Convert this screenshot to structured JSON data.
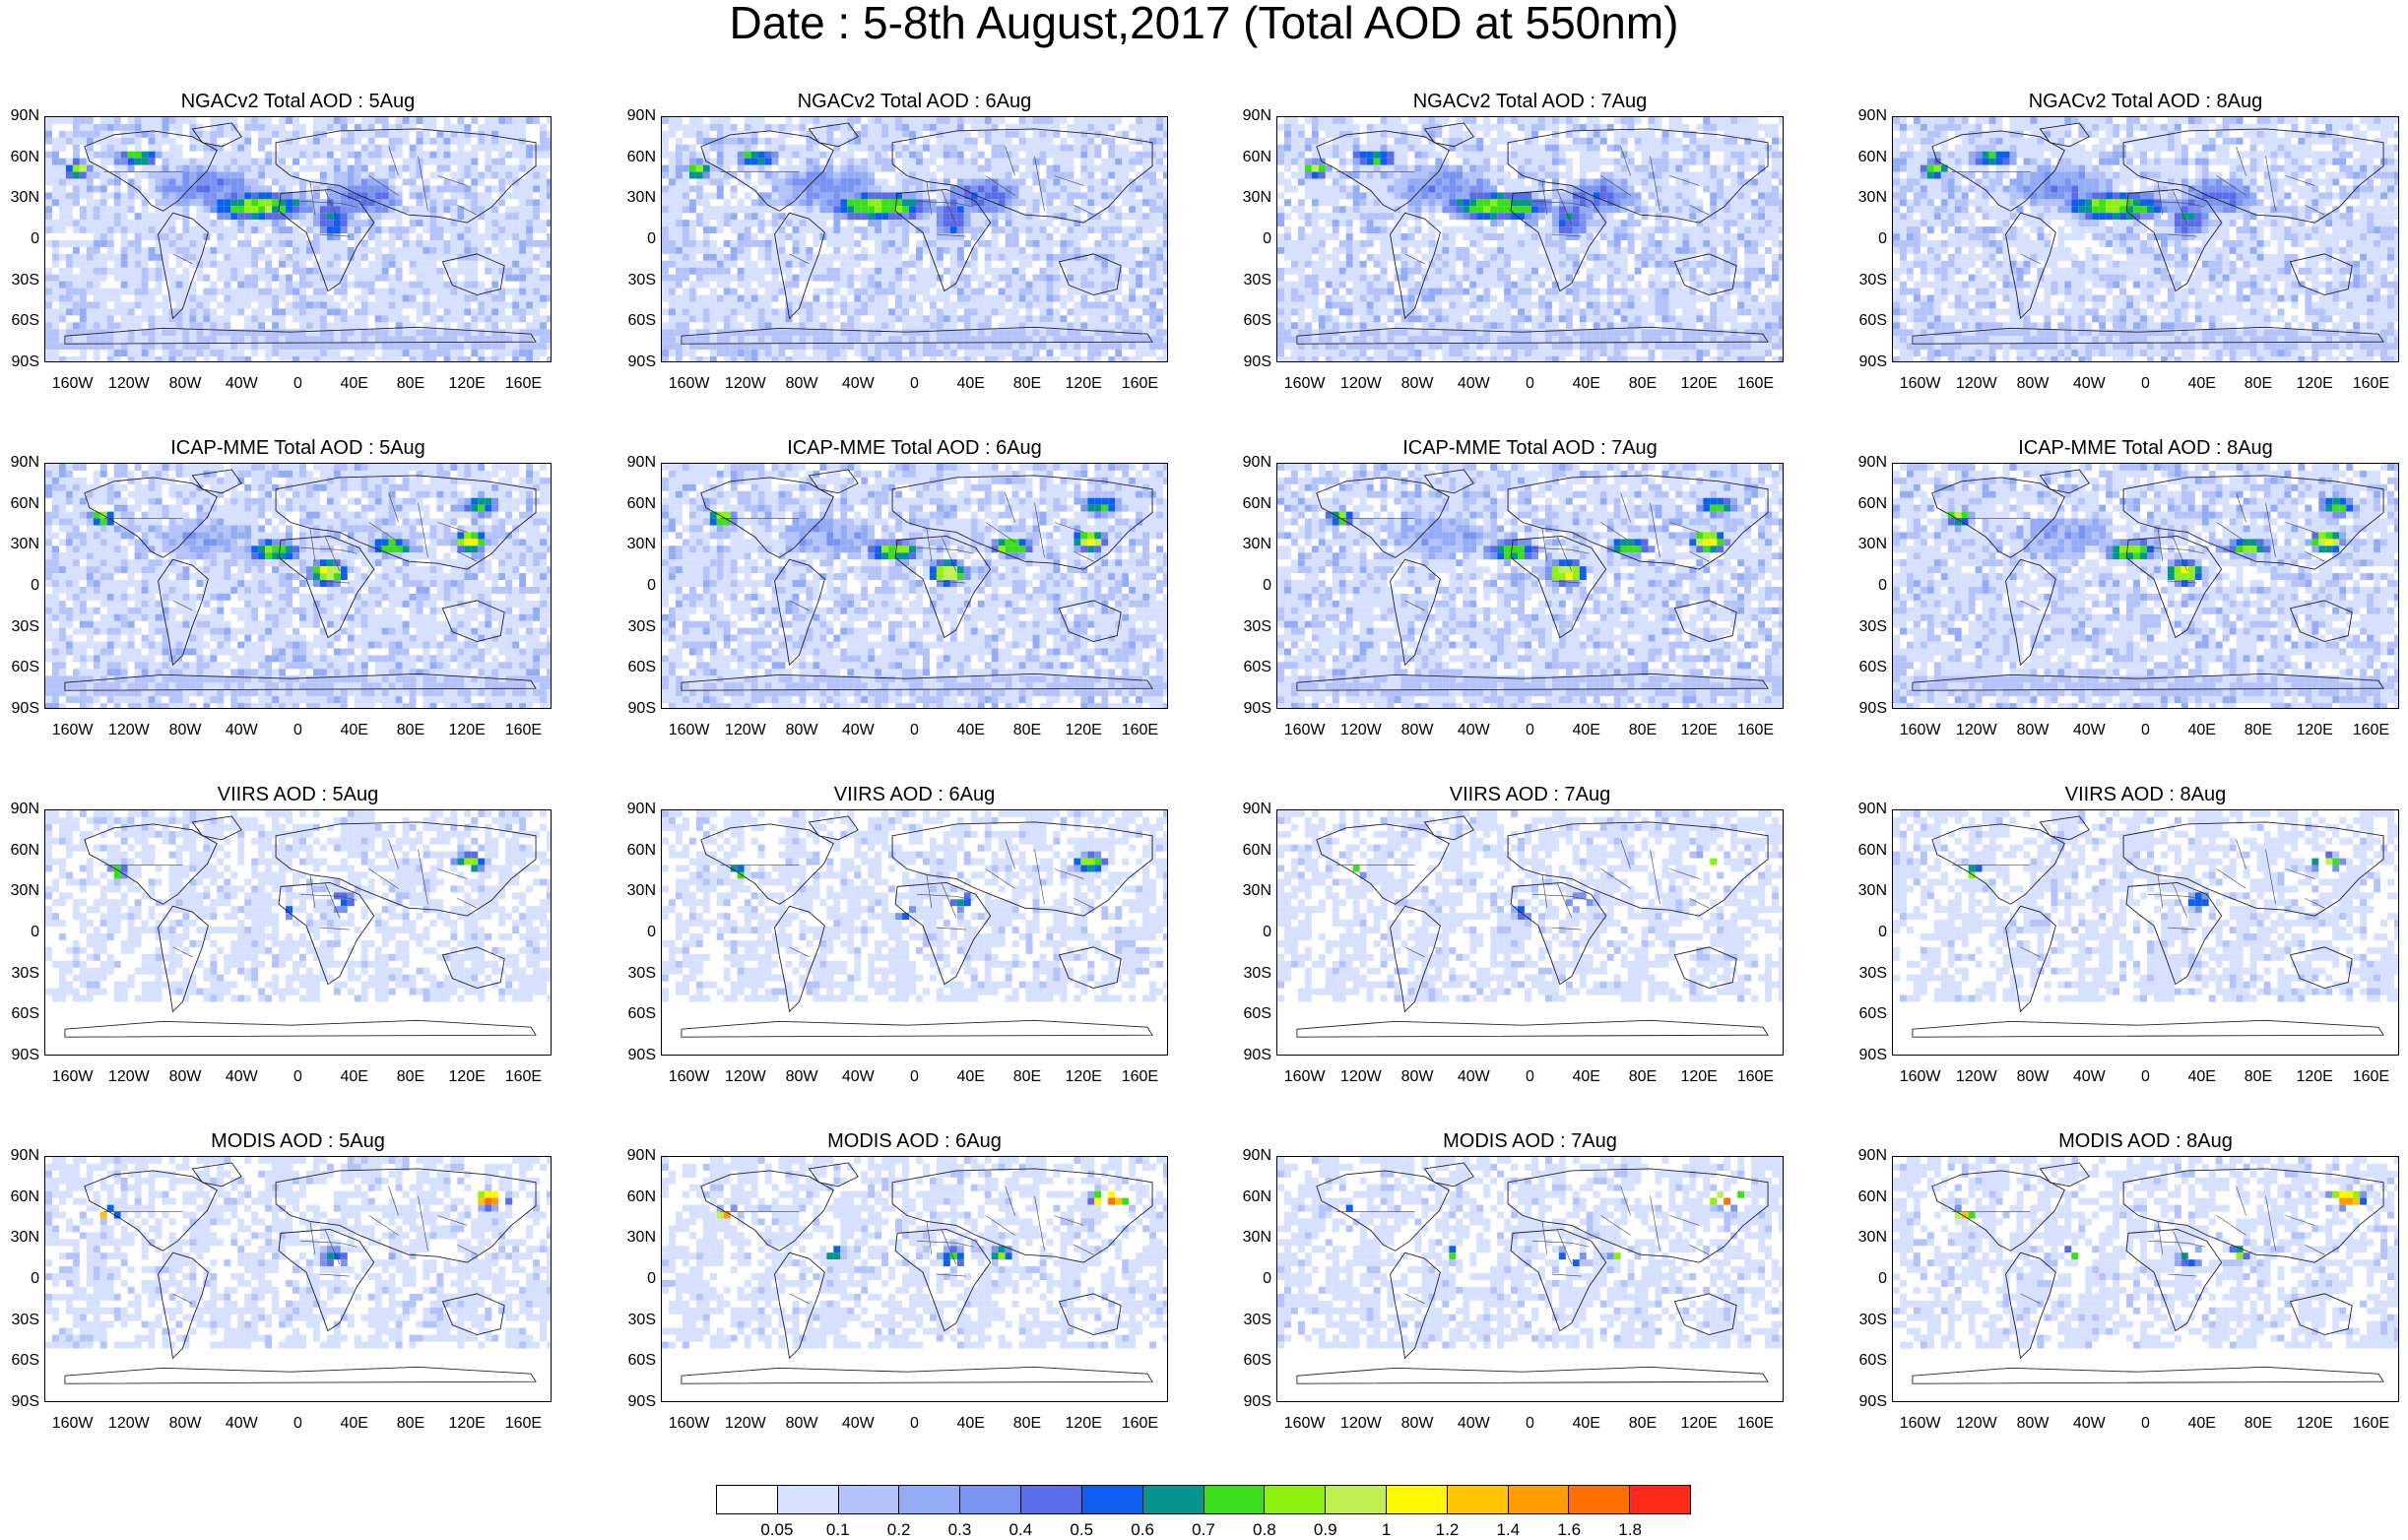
{
  "title": "Date : 5-8th August,2017 (Total AOD at 550nm)",
  "lat_labels": [
    "90N",
    "60N",
    "30N",
    "0",
    "30S",
    "60S",
    "90S"
  ],
  "lon_labels": [
    "160W",
    "120W",
    "80W",
    "40W",
    "0",
    "40E",
    "80E",
    "120E",
    "160E"
  ],
  "colorbar": {
    "colors": [
      "#ffffff",
      "#d6e0ff",
      "#b4c4fa",
      "#94acf6",
      "#7a93f0",
      "#5a6ce8",
      "#0d5ff0",
      "#06948e",
      "#3ade1a",
      "#8ef010",
      "#c0f050",
      "#fff800",
      "#ffc400",
      "#ff9c00",
      "#ff7000",
      "#ff2a18"
    ],
    "labels": [
      "0.05",
      "0.1",
      "0.2",
      "0.3",
      "0.4",
      "0.5",
      "0.6",
      "0.7",
      "0.8",
      "0.9",
      "1",
      "1.2",
      "1.4",
      "1.6",
      "1.8"
    ]
  },
  "panels": [
    {
      "title": "NGACv2 Total AOD : 5Aug",
      "source": "NGACv2",
      "day": 5
    },
    {
      "title": "NGACv2 Total AOD : 6Aug",
      "source": "NGACv2",
      "day": 6
    },
    {
      "title": "NGACv2 Total AOD : 7Aug",
      "source": "NGACv2",
      "day": 7
    },
    {
      "title": "NGACv2 Total AOD : 8Aug",
      "source": "NGACv2",
      "day": 8
    },
    {
      "title": "ICAP-MME Total AOD : 5Aug",
      "source": "ICAP-MME",
      "day": 5
    },
    {
      "title": "ICAP-MME Total AOD : 6Aug",
      "source": "ICAP-MME",
      "day": 6
    },
    {
      "title": "ICAP-MME Total AOD : 7Aug",
      "source": "ICAP-MME",
      "day": 7
    },
    {
      "title": "ICAP-MME Total AOD : 8Aug",
      "source": "ICAP-MME",
      "day": 8
    },
    {
      "title": "VIIRS AOD : 5Aug",
      "source": "VIIRS",
      "day": 5
    },
    {
      "title": "VIIRS AOD : 6Aug",
      "source": "VIIRS",
      "day": 6
    },
    {
      "title": "VIIRS AOD : 7Aug",
      "source": "VIIRS",
      "day": 7
    },
    {
      "title": "VIIRS AOD : 8Aug",
      "source": "VIIRS",
      "day": 8
    },
    {
      "title": "MODIS AOD : 5Aug",
      "source": "MODIS",
      "day": 5
    },
    {
      "title": "MODIS AOD : 6Aug",
      "source": "MODIS",
      "day": 6
    },
    {
      "title": "MODIS AOD : 7Aug",
      "source": "MODIS",
      "day": 7
    },
    {
      "title": "MODIS AOD : 8Aug",
      "source": "MODIS",
      "day": 8
    }
  ]
}
